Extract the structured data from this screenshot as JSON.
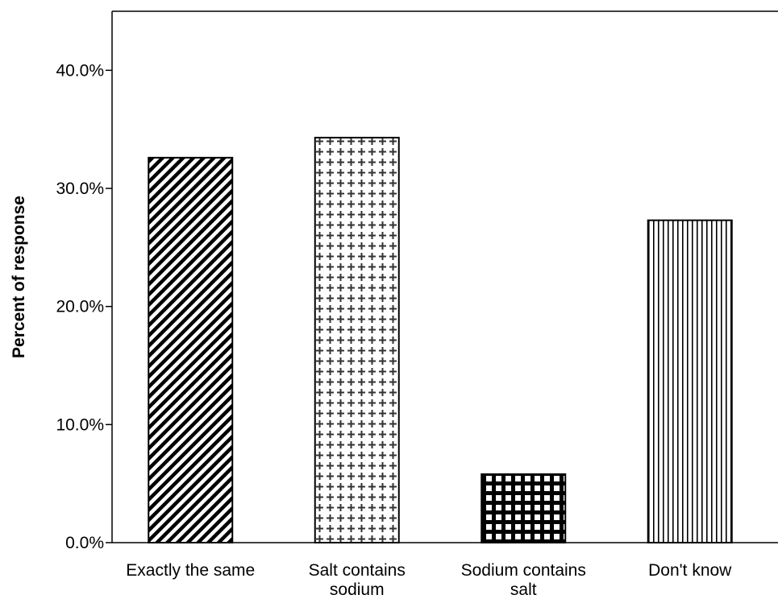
{
  "chart_data": {
    "type": "bar",
    "title": "",
    "xlabel": "",
    "ylabel": "Percent of response",
    "ylim": [
      0,
      45
    ],
    "yticks": [
      "0.0%",
      "10.0%",
      "20.0%",
      "30.0%",
      "40.0%"
    ],
    "yticks_values": [
      0,
      10,
      20,
      30,
      40
    ],
    "categories": [
      [
        "Exactly the same"
      ],
      [
        "Salt contains",
        "sodium"
      ],
      [
        "Sodium contains",
        "salt"
      ],
      [
        "Don't know"
      ]
    ],
    "values": [
      32.6,
      34.3,
      5.8,
      27.3
    ],
    "patterns": [
      "diagonal-stripes",
      "cross-dots",
      "checker-grid",
      "vertical-stripes"
    ],
    "grid": false,
    "legend": "none",
    "colors": {
      "background": "#ffffff",
      "bar_stroke": "#000000",
      "axis": "#000000"
    }
  }
}
